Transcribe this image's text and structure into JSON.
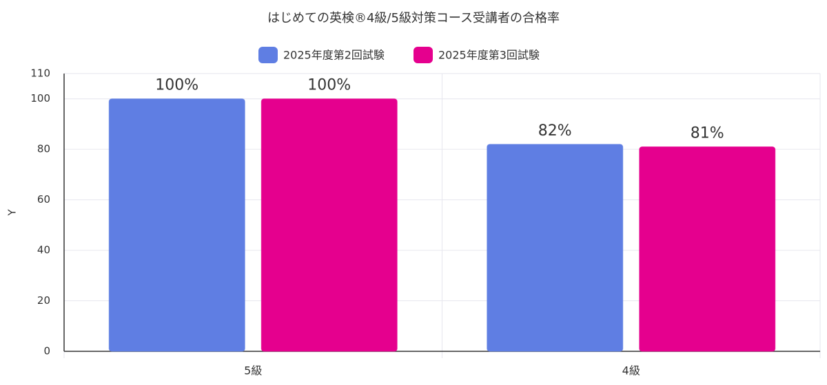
{
  "chart_data": {
    "type": "bar",
    "title": "はじめての英検®4級/5級対策コース受講者の合格率",
    "y_label": "Y",
    "categories": [
      "5級",
      "4級"
    ],
    "series": [
      {
        "name": "2025年度第2回試験",
        "color": "#5f7ee3",
        "values": [
          100,
          82
        ],
        "value_labels": [
          "100%",
          "82%"
        ]
      },
      {
        "name": "2025年度第3回試験",
        "color": "#e5008e",
        "values": [
          100,
          81
        ],
        "value_labels": [
          "100%",
          "81%"
        ]
      }
    ],
    "ylim": [
      0,
      110
    ],
    "yticks": [
      0,
      20,
      40,
      60,
      80,
      100,
      110
    ],
    "grid": true,
    "legend": "top"
  }
}
